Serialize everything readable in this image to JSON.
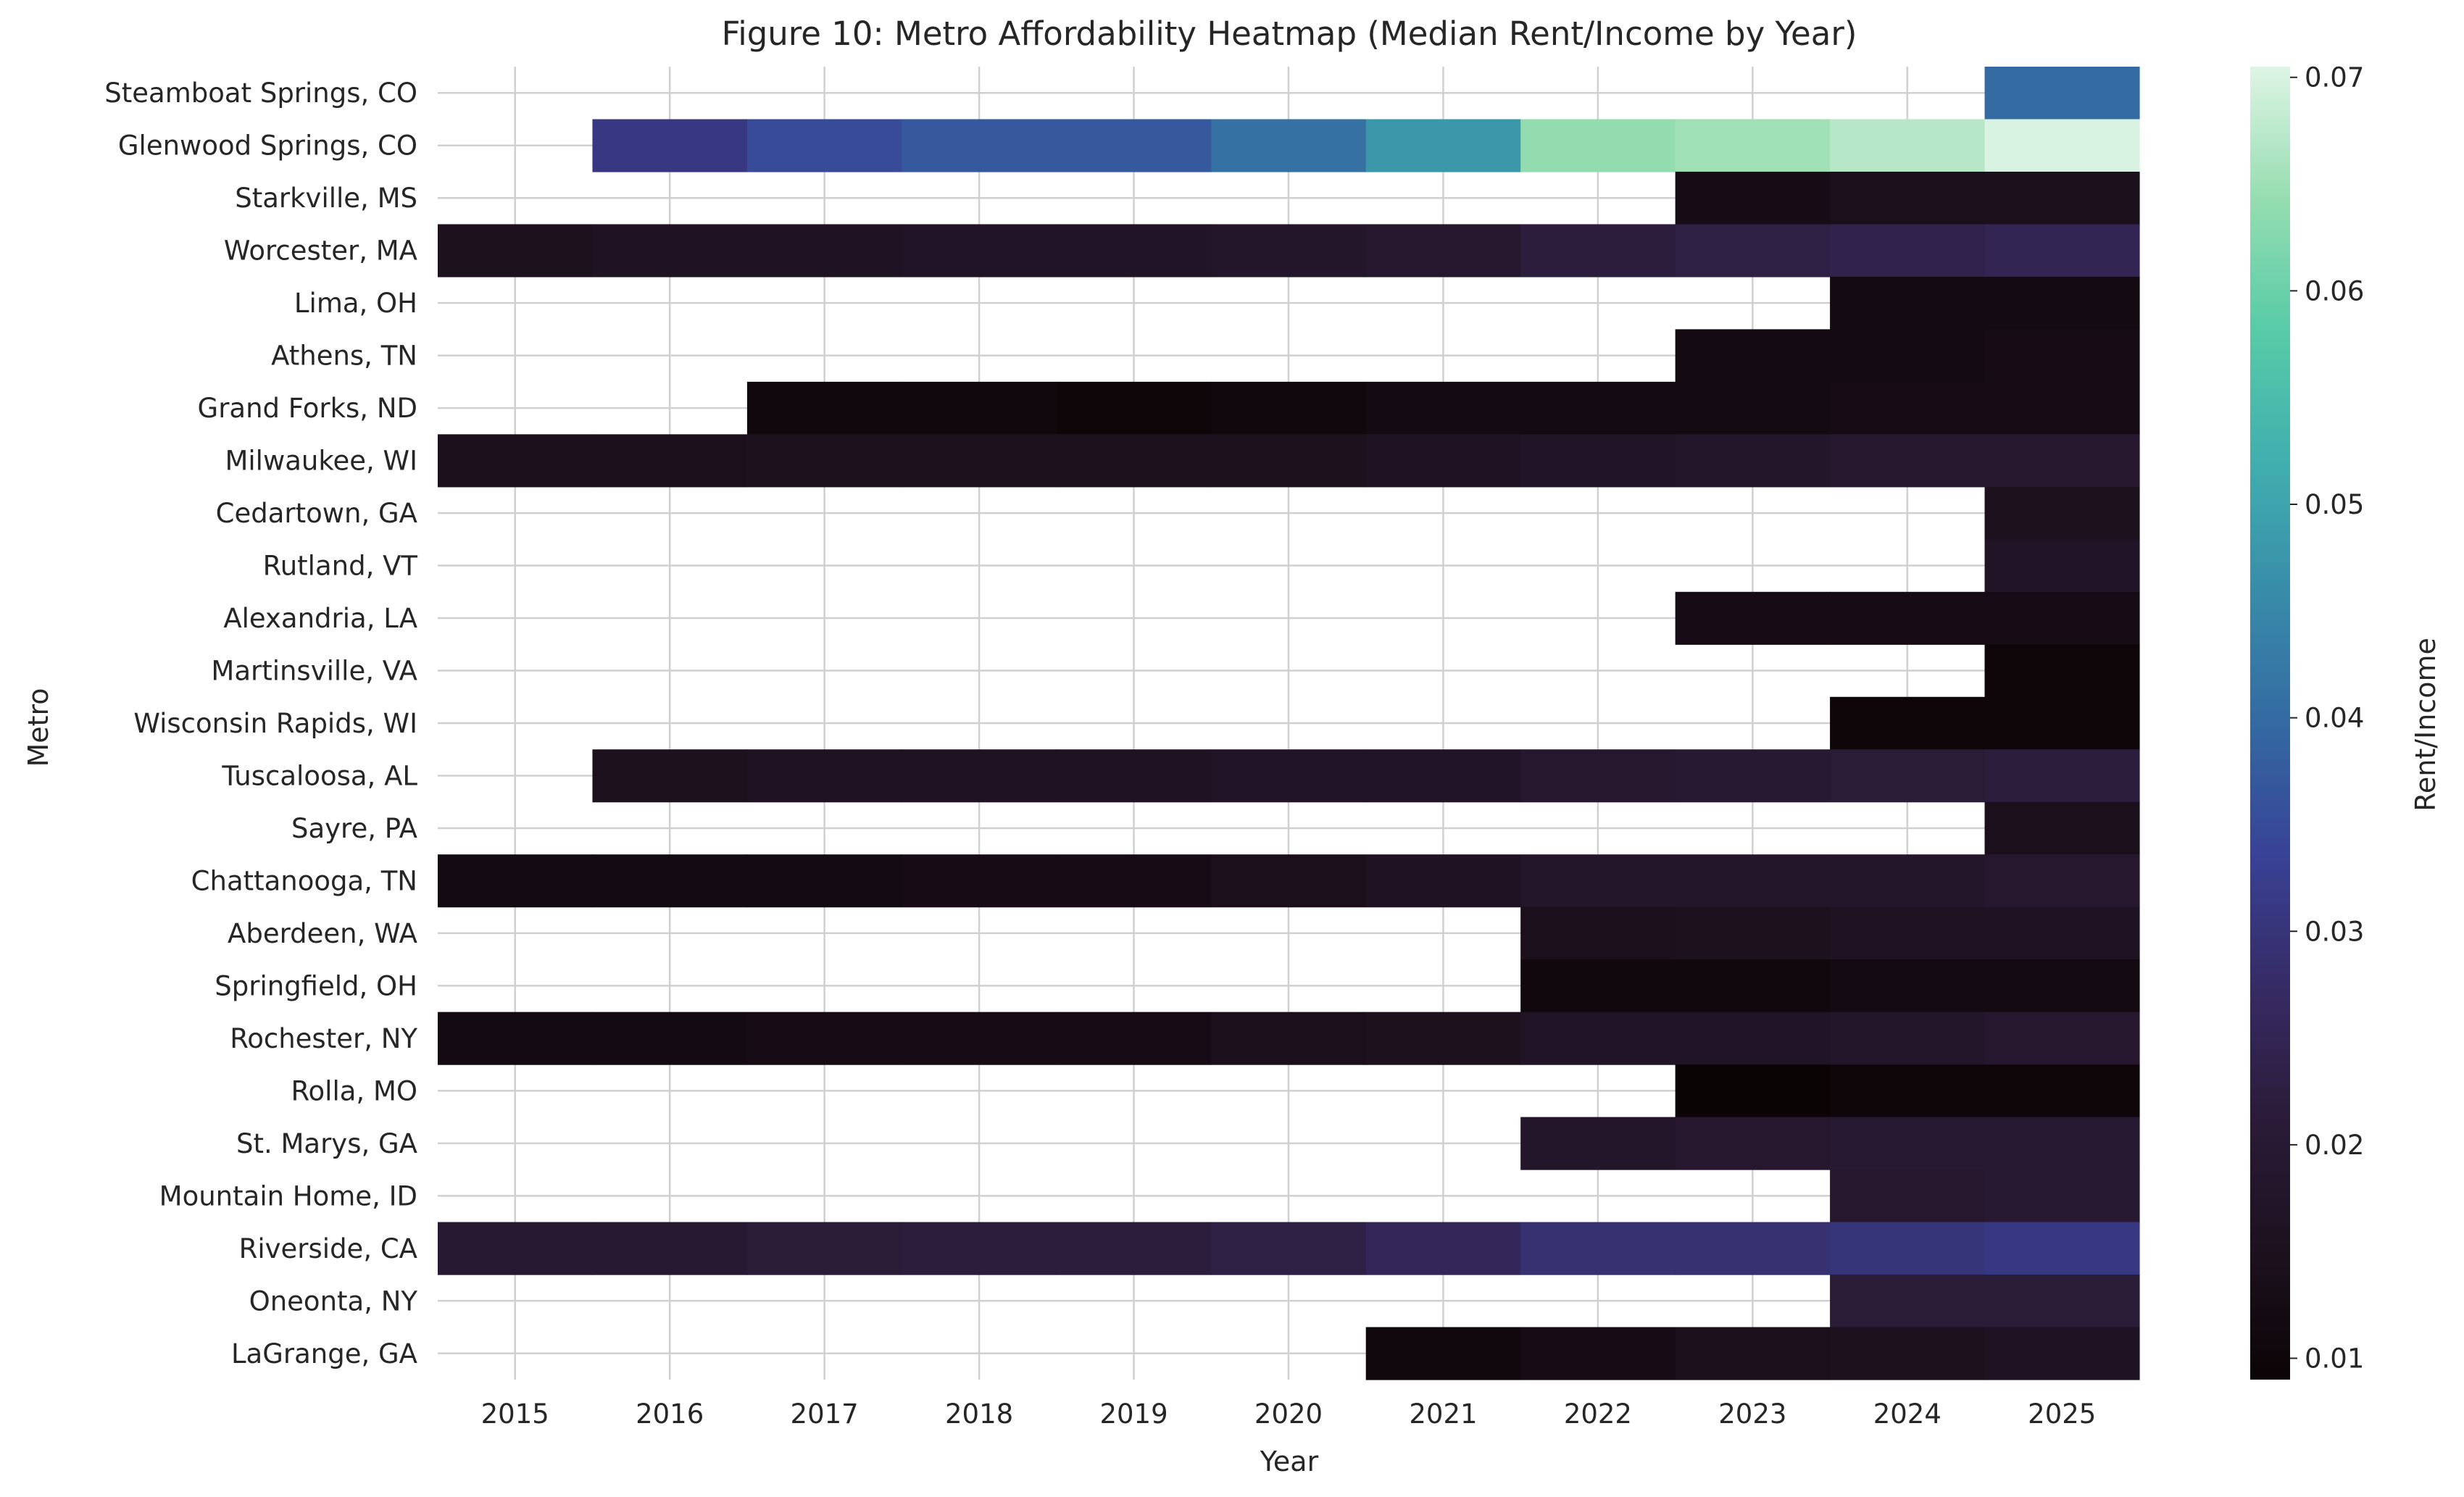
{
  "chart_data": {
    "type": "heatmap",
    "title": "Figure 10: Metro Affordability Heatmap (Median Rent/Income by Year)",
    "xlabel": "Year",
    "ylabel": "Metro",
    "colorbar_label": "Rent/Income",
    "colormap": "mako",
    "vmin": 0.009,
    "vmax": 0.0705,
    "colorbar_ticks": [
      "0.01",
      "0.02",
      "0.03",
      "0.04",
      "0.05",
      "0.06",
      "0.07"
    ],
    "grid": true,
    "x": [
      "2015",
      "2016",
      "2017",
      "2018",
      "2019",
      "2020",
      "2021",
      "2022",
      "2023",
      "2024",
      "2025"
    ],
    "rows": [
      {
        "metro": "Steamboat Springs, CO",
        "values": [
          null,
          null,
          null,
          null,
          null,
          null,
          null,
          null,
          null,
          null,
          0.04
        ]
      },
      {
        "metro": "Glenwood Springs, CO",
        "values": [
          null,
          0.031,
          0.035,
          0.037,
          0.037,
          0.041,
          0.048,
          0.064,
          0.065,
          0.067,
          0.07
        ]
      },
      {
        "metro": "Starkville, MS",
        "values": [
          null,
          null,
          null,
          null,
          null,
          null,
          null,
          null,
          0.013,
          0.014,
          0.014
        ]
      },
      {
        "metro": "Worcester, MA",
        "values": [
          0.015,
          0.016,
          0.016,
          0.017,
          0.017,
          0.018,
          0.019,
          0.022,
          0.023,
          0.024,
          0.025
        ]
      },
      {
        "metro": "Lima, OH",
        "values": [
          null,
          null,
          null,
          null,
          null,
          null,
          null,
          null,
          null,
          0.012,
          0.012
        ]
      },
      {
        "metro": "Athens, TN",
        "values": [
          null,
          null,
          null,
          null,
          null,
          null,
          null,
          null,
          0.012,
          0.012,
          0.013
        ]
      },
      {
        "metro": "Grand Forks, ND",
        "values": [
          null,
          null,
          0.011,
          0.011,
          0.01,
          0.011,
          0.012,
          0.012,
          0.012,
          0.013,
          0.013
        ]
      },
      {
        "metro": "Milwaukee, WI",
        "values": [
          0.014,
          0.014,
          0.015,
          0.015,
          0.015,
          0.015,
          0.016,
          0.017,
          0.018,
          0.019,
          0.019
        ]
      },
      {
        "metro": "Cedartown, GA",
        "values": [
          null,
          null,
          null,
          null,
          null,
          null,
          null,
          null,
          null,
          null,
          0.015
        ]
      },
      {
        "metro": "Rutland, VT",
        "values": [
          null,
          null,
          null,
          null,
          null,
          null,
          null,
          null,
          null,
          null,
          0.017
        ]
      },
      {
        "metro": "Alexandria, LA",
        "values": [
          null,
          null,
          null,
          null,
          null,
          null,
          null,
          null,
          0.013,
          0.013,
          0.013
        ]
      },
      {
        "metro": "Martinsville, VA",
        "values": [
          null,
          null,
          null,
          null,
          null,
          null,
          null,
          null,
          null,
          null,
          0.01
        ]
      },
      {
        "metro": "Wisconsin Rapids, WI",
        "values": [
          null,
          null,
          null,
          null,
          null,
          null,
          null,
          null,
          null,
          0.01,
          0.01
        ]
      },
      {
        "metro": "Tuscaloosa, AL",
        "values": [
          null,
          0.015,
          0.016,
          0.016,
          0.016,
          0.017,
          0.017,
          0.019,
          0.02,
          0.021,
          0.022
        ]
      },
      {
        "metro": "Sayre, PA",
        "values": [
          null,
          null,
          null,
          null,
          null,
          null,
          null,
          null,
          null,
          null,
          0.014
        ]
      },
      {
        "metro": "Chattanooga, TN",
        "values": [
          0.012,
          0.012,
          0.012,
          0.013,
          0.013,
          0.014,
          0.016,
          0.018,
          0.018,
          0.018,
          0.019
        ]
      },
      {
        "metro": "Aberdeen, WA",
        "values": [
          null,
          null,
          null,
          null,
          null,
          null,
          null,
          0.014,
          0.015,
          0.016,
          0.016
        ]
      },
      {
        "metro": "Springfield, OH",
        "values": [
          null,
          null,
          null,
          null,
          null,
          null,
          null,
          0.011,
          0.011,
          0.012,
          0.012
        ]
      },
      {
        "metro": "Rochester, NY",
        "values": [
          0.012,
          0.012,
          0.013,
          0.013,
          0.013,
          0.014,
          0.015,
          0.017,
          0.017,
          0.018,
          0.019
        ]
      },
      {
        "metro": "Rolla, MO",
        "values": [
          null,
          null,
          null,
          null,
          null,
          null,
          null,
          null,
          0.009,
          0.01,
          0.01
        ]
      },
      {
        "metro": "St. Marys, GA",
        "values": [
          null,
          null,
          null,
          null,
          null,
          null,
          null,
          0.018,
          0.019,
          0.02,
          0.02
        ]
      },
      {
        "metro": "Mountain Home, ID",
        "values": [
          null,
          null,
          null,
          null,
          null,
          null,
          null,
          null,
          null,
          0.019,
          0.02
        ]
      },
      {
        "metro": "Riverside, CA",
        "values": [
          0.02,
          0.02,
          0.021,
          0.022,
          0.022,
          0.023,
          0.026,
          0.029,
          0.029,
          0.03,
          0.031
        ]
      },
      {
        "metro": "Oneonta, NY",
        "values": [
          null,
          null,
          null,
          null,
          null,
          null,
          null,
          null,
          null,
          0.021,
          0.021
        ]
      },
      {
        "metro": "LaGrange, GA",
        "values": [
          null,
          null,
          null,
          null,
          null,
          null,
          0.011,
          0.013,
          0.014,
          0.015,
          0.016
        ]
      }
    ]
  }
}
